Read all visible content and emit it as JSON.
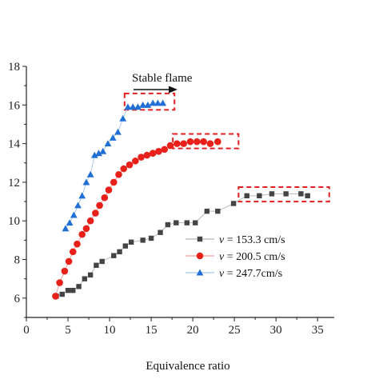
{
  "chart_data": {
    "type": "line",
    "xlabel": "Equivalence ratio",
    "ylabel": "",
    "xlim": [
      0,
      37
    ],
    "ylim": [
      5,
      18
    ],
    "x_ticks": [
      0,
      5,
      10,
      15,
      20,
      25,
      30,
      35
    ],
    "y_ticks": [
      6,
      8,
      10,
      12,
      14,
      16,
      18
    ],
    "annotation": "Stable flame",
    "legend_position": "center-right",
    "series": [
      {
        "name_prefix": "v",
        "name_suffix": " = 153.3 cm/s",
        "marker": "square",
        "color": "#444444",
        "line_color": "#b8b8b8",
        "x": [
          3.6,
          4.3,
          5.0,
          5.6,
          6.3,
          7.0,
          7.7,
          8.4,
          9.1,
          10.5,
          11.2,
          11.9,
          12.6,
          14.0,
          15.0,
          16.1,
          17.0,
          18.0,
          19.3,
          20.3,
          21.7,
          23.0,
          24.9,
          26.5,
          28.0,
          29.5,
          31.2,
          33.0,
          33.8
        ],
        "y": [
          6.1,
          6.2,
          6.4,
          6.4,
          6.6,
          7.0,
          7.2,
          7.7,
          7.9,
          8.2,
          8.4,
          8.7,
          8.9,
          9.0,
          9.1,
          9.4,
          9.8,
          9.9,
          9.9,
          9.9,
          10.5,
          10.5,
          10.9,
          11.3,
          11.3,
          11.4,
          11.4,
          11.4,
          11.3
        ]
      },
      {
        "name_prefix": "v",
        "name_suffix": " = 200.5 cm/s",
        "marker": "circle",
        "color": "#e8201a",
        "line_color": "#f0a0a0",
        "x": [
          3.5,
          4.0,
          4.6,
          5.1,
          5.6,
          6.1,
          6.7,
          7.2,
          7.7,
          8.3,
          8.8,
          9.4,
          9.9,
          10.5,
          11.1,
          11.7,
          12.4,
          13.1,
          13.8,
          14.5,
          15.2,
          15.9,
          16.6,
          17.3,
          18.1,
          18.9,
          19.7,
          20.5,
          21.3,
          22.1,
          23.0
        ],
        "y": [
          6.1,
          6.8,
          7.4,
          7.9,
          8.4,
          8.8,
          9.3,
          9.6,
          10.0,
          10.4,
          10.8,
          11.2,
          11.6,
          12.0,
          12.4,
          12.7,
          12.9,
          13.1,
          13.3,
          13.4,
          13.5,
          13.6,
          13.7,
          13.9,
          14.0,
          14.0,
          14.1,
          14.1,
          14.1,
          14.0,
          14.1
        ]
      },
      {
        "name_prefix": "v",
        "name_suffix": " = 247.7cm/s",
        "marker": "triangle",
        "color": "#1f6fd6",
        "line_color": "#a8c8ee",
        "x": [
          4.7,
          5.2,
          5.7,
          6.2,
          6.7,
          7.2,
          7.7,
          8.2,
          8.7,
          9.2,
          9.8,
          10.4,
          11.0,
          11.6,
          12.2,
          12.8,
          13.4,
          14.0,
          14.6,
          15.2,
          15.8,
          16.4
        ],
        "y": [
          9.6,
          9.9,
          10.3,
          10.8,
          11.3,
          12.0,
          12.4,
          13.4,
          13.5,
          13.6,
          14.0,
          14.3,
          14.6,
          15.3,
          15.9,
          15.9,
          15.9,
          16.0,
          16.0,
          16.1,
          16.1,
          16.1
        ]
      }
    ],
    "highlight_boxes": [
      {
        "x0": 11.8,
        "x1": 17.8,
        "y0": 15.75,
        "y1": 16.6
      },
      {
        "x0": 17.6,
        "x1": 25.5,
        "y0": 13.75,
        "y1": 14.5
      },
      {
        "x0": 25.5,
        "x1": 36.4,
        "y0": 11.0,
        "y1": 11.75
      }
    ],
    "highlight_color": "#e02020"
  }
}
